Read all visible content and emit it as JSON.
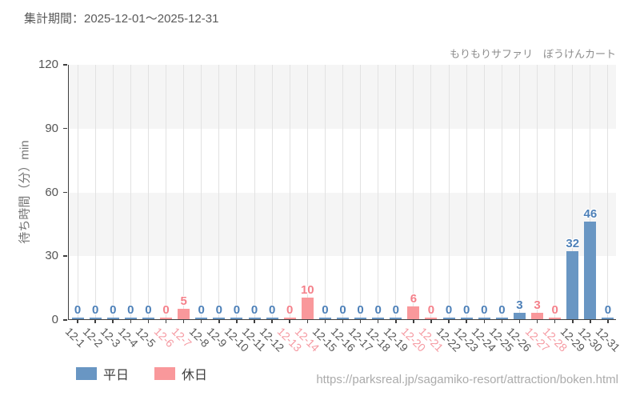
{
  "header": {
    "title": "集計期間：2025-12-01～2025-12-31",
    "subtitle": "もりもりサファリ　ぼうけんカート"
  },
  "footer": {
    "url": "https://parksreal.jp/sagamiko-resort/attraction/boken.html"
  },
  "legend": {
    "items": [
      {
        "label": "平日",
        "type": "weekday"
      },
      {
        "label": "休日",
        "type": "holiday"
      }
    ]
  },
  "colors": {
    "weekday_bar": "#6996c3",
    "holiday_bar": "#f9989b",
    "weekday_value": "#4d80b8",
    "holiday_value": "#f4808a",
    "weekday_tick": "#595959",
    "holiday_tick": "#f59aa2",
    "band": "#f5f5f5",
    "gridline": "#e2e2e2",
    "axis": "#3f3f3f"
  },
  "chart_data": {
    "type": "bar",
    "title": "もりもりサファリ　ぼうけんカート",
    "xlabel": "",
    "ylabel": "待ち時間（分）min",
    "ylim": [
      0,
      120
    ],
    "yticks": [
      0,
      30,
      60,
      90,
      120
    ],
    "bands": [
      [
        30,
        60
      ],
      [
        90,
        120
      ]
    ],
    "grid": "vertical",
    "legend_position": "bottom-left",
    "categories": [
      "12-1",
      "12-2",
      "12-3",
      "12-4",
      "12-5",
      "12-6",
      "12-7",
      "12-8",
      "12-9",
      "12-10",
      "12-11",
      "12-12",
      "12-13",
      "12-14",
      "12-15",
      "12-16",
      "12-17",
      "12-18",
      "12-19",
      "12-20",
      "12-21",
      "12-22",
      "12-23",
      "12-24",
      "12-25",
      "12-26",
      "12-27",
      "12-28",
      "12-29",
      "12-30",
      "12-31"
    ],
    "points": [
      {
        "label": "12-1",
        "value": 0,
        "day": "weekday"
      },
      {
        "label": "12-2",
        "value": 0,
        "day": "weekday"
      },
      {
        "label": "12-3",
        "value": 0,
        "day": "weekday"
      },
      {
        "label": "12-4",
        "value": 0,
        "day": "weekday"
      },
      {
        "label": "12-5",
        "value": 0,
        "day": "weekday"
      },
      {
        "label": "12-6",
        "value": 0,
        "day": "holiday"
      },
      {
        "label": "12-7",
        "value": 5,
        "day": "holiday"
      },
      {
        "label": "12-8",
        "value": 0,
        "day": "weekday"
      },
      {
        "label": "12-9",
        "value": 0,
        "day": "weekday"
      },
      {
        "label": "12-10",
        "value": 0,
        "day": "weekday"
      },
      {
        "label": "12-11",
        "value": 0,
        "day": "weekday"
      },
      {
        "label": "12-12",
        "value": 0,
        "day": "weekday"
      },
      {
        "label": "12-13",
        "value": 0,
        "day": "holiday"
      },
      {
        "label": "12-14",
        "value": 10,
        "day": "holiday"
      },
      {
        "label": "12-15",
        "value": 0,
        "day": "weekday"
      },
      {
        "label": "12-16",
        "value": 0,
        "day": "weekday"
      },
      {
        "label": "12-17",
        "value": 0,
        "day": "weekday"
      },
      {
        "label": "12-18",
        "value": 0,
        "day": "weekday"
      },
      {
        "label": "12-19",
        "value": 0,
        "day": "weekday"
      },
      {
        "label": "12-20",
        "value": 6,
        "day": "holiday"
      },
      {
        "label": "12-21",
        "value": 0,
        "day": "holiday"
      },
      {
        "label": "12-22",
        "value": 0,
        "day": "weekday"
      },
      {
        "label": "12-23",
        "value": 0,
        "day": "weekday"
      },
      {
        "label": "12-24",
        "value": 0,
        "day": "weekday"
      },
      {
        "label": "12-25",
        "value": 0,
        "day": "weekday"
      },
      {
        "label": "12-26",
        "value": 3,
        "day": "weekday"
      },
      {
        "label": "12-27",
        "value": 3,
        "day": "holiday"
      },
      {
        "label": "12-28",
        "value": 0,
        "day": "holiday"
      },
      {
        "label": "12-29",
        "value": 32,
        "day": "weekday"
      },
      {
        "label": "12-30",
        "value": 46,
        "day": "weekday"
      },
      {
        "label": "12-31",
        "value": 0,
        "day": "weekday"
      }
    ]
  }
}
